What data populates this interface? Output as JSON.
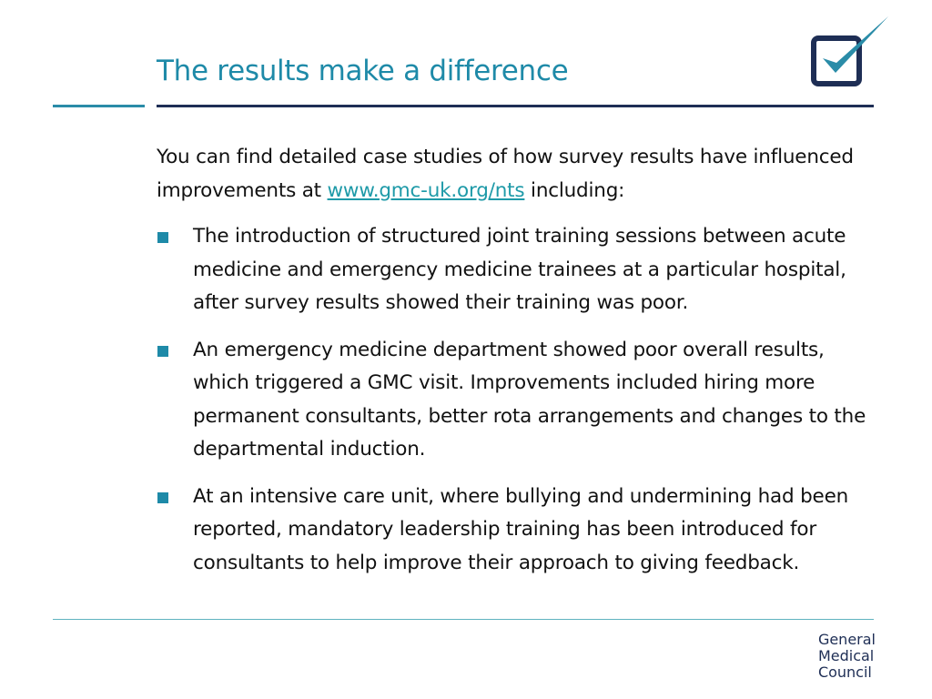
{
  "header": {
    "title": "The results make a difference"
  },
  "intro": {
    "text_before_link": "You can find detailed case studies of how survey results have influenced improvements at ",
    "link_text": "www.gmc-uk.org/nts",
    "text_after_link": " including:"
  },
  "bullets": [
    "The introduction of structured joint training sessions between acute medicine and emergency medicine trainees at a particular hospital, after survey results showed their training was poor.",
    "An emergency medicine department showed poor overall results, which triggered a GMC visit. Improvements included hiring more permanent consultants, better rota arrangements and changes to the departmental induction.",
    "At an intensive care unit, where bullying and undermining had been reported, mandatory leadership training has been introduced for consultants to help improve their approach to giving feedback."
  ],
  "footer": {
    "brand_line1": "General",
    "brand_line2": "Medical",
    "brand_line3": "Council"
  },
  "colors": {
    "title": "#1e8aa8",
    "navy": "#1e2e55",
    "bullet": "#1e8aa8",
    "link": "#1e9aa8"
  },
  "icons": {
    "logo": "checkbox-check-icon",
    "bullet": "square-bullet-icon"
  }
}
